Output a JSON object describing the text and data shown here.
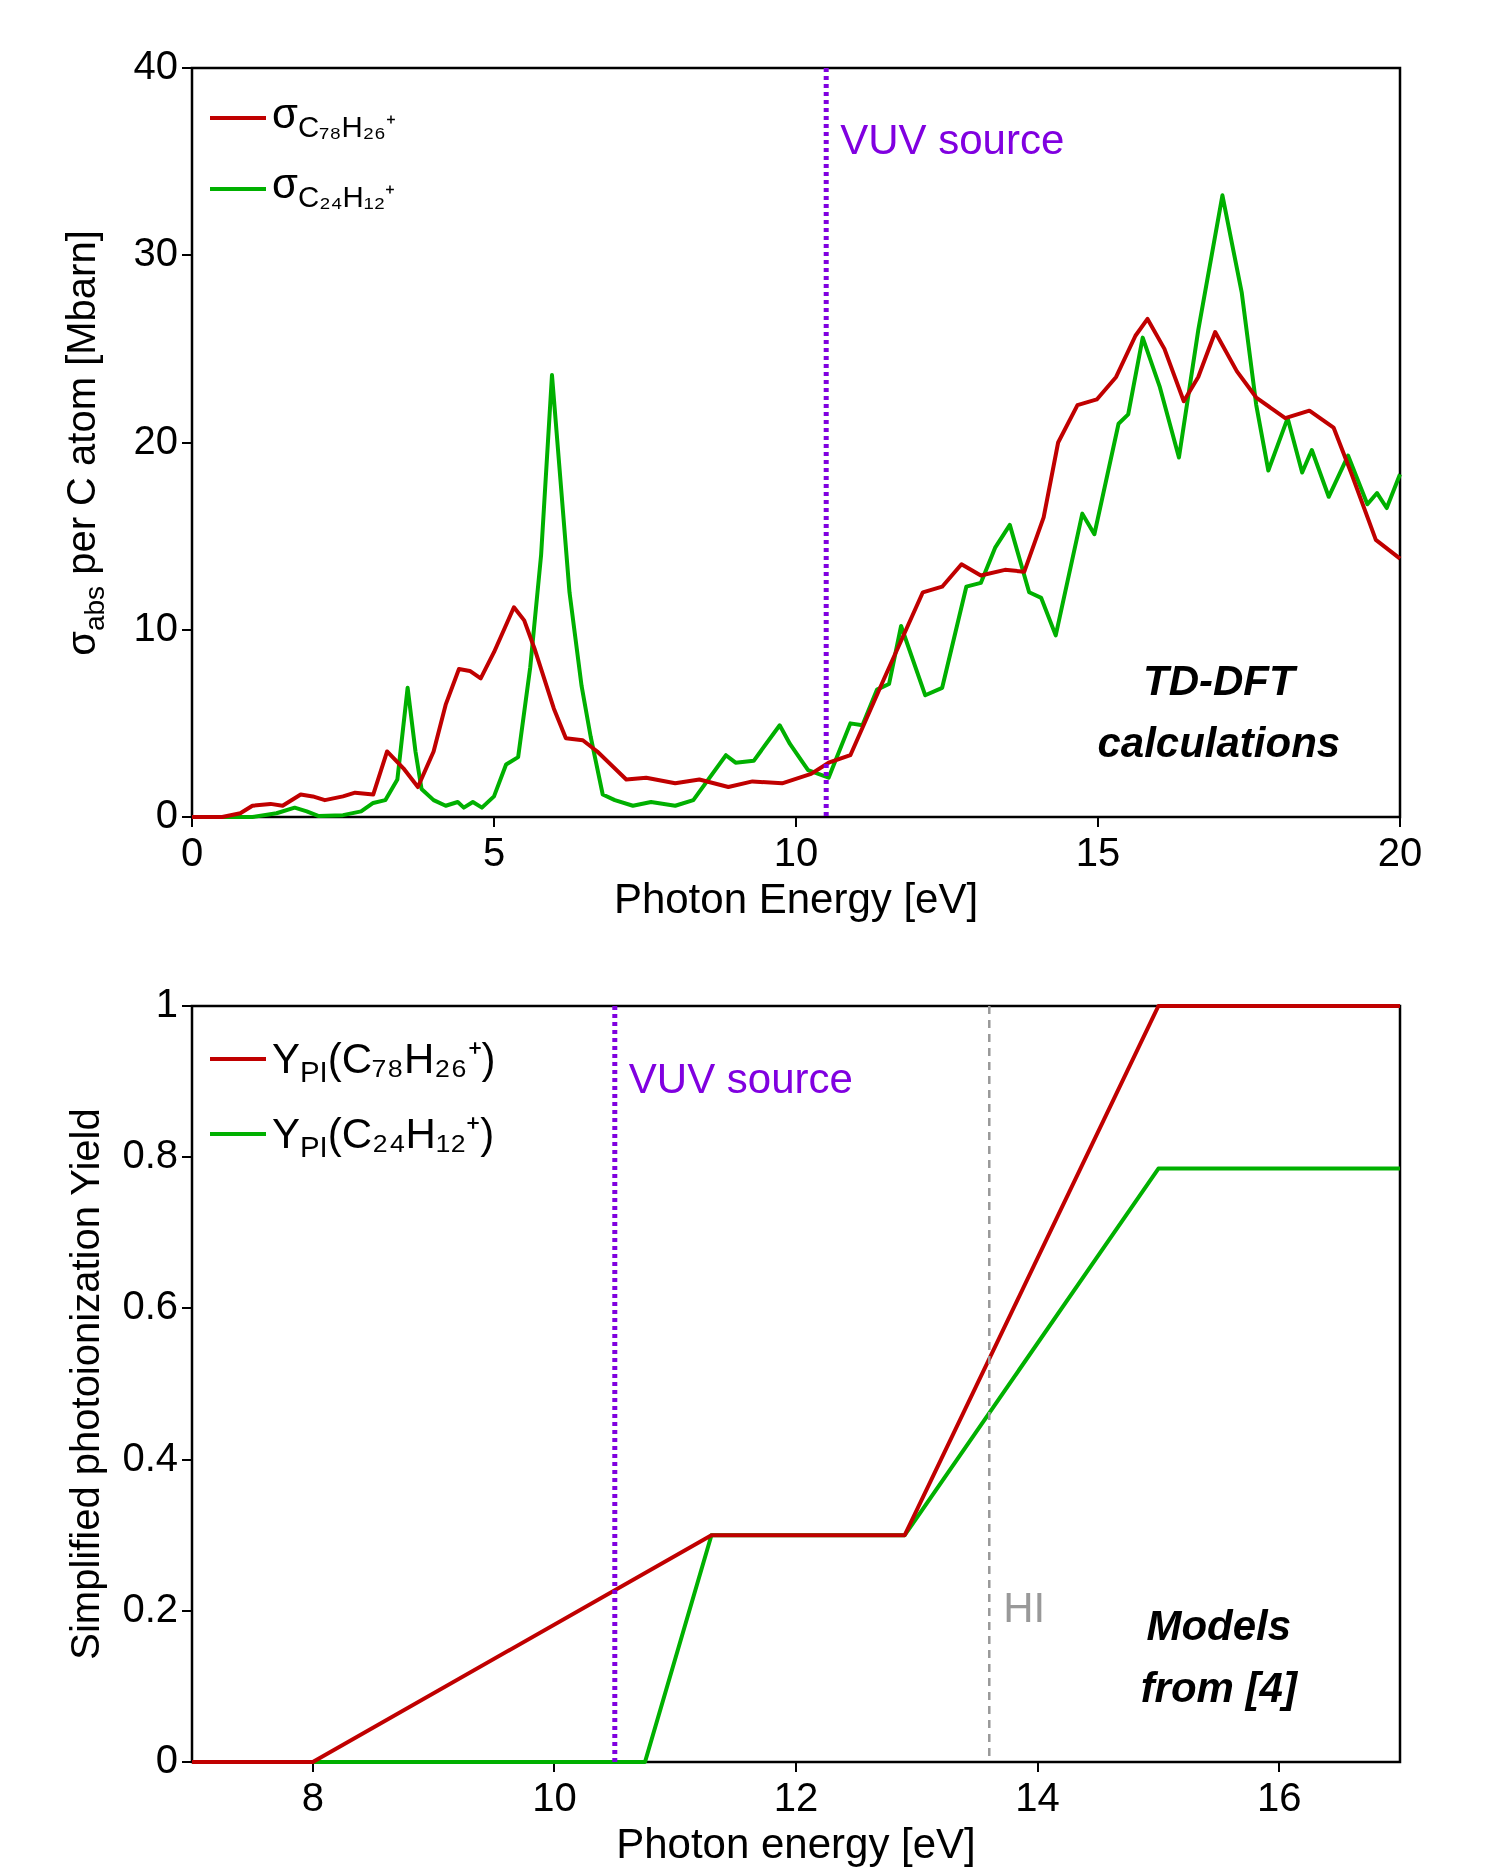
{
  "chart_data": [
    {
      "type": "line",
      "xlabel": "Photon Energy [eV]",
      "ylabel": "σ$_{abs}$ per C atom [Mbarn]",
      "xlim": [
        0,
        20
      ],
      "ylim": [
        0,
        40
      ],
      "xticks": [
        0,
        5,
        10,
        15,
        20
      ],
      "yticks": [
        0,
        10,
        20,
        30,
        40
      ],
      "grid": false,
      "legend": "top left",
      "marker": "none",
      "line_style": "solid",
      "series": [
        {
          "name": "σ$_{C₇₈H₂₆⁺}$",
          "color": "#c00000",
          "x": [
            0,
            0.5,
            0.8,
            1,
            1.3,
            1.5,
            1.7,
            1.8,
            2,
            2.2,
            2.5,
            2.7,
            3,
            3.23,
            3.5,
            3.74,
            4,
            4.2,
            4.42,
            4.6,
            4.78,
            5,
            5.33,
            5.5,
            5.67,
            5.99,
            6.19,
            6.47,
            6.71,
            7.19,
            7.52,
            8,
            8.4,
            8.88,
            9.28,
            9.77,
            10.25,
            10.54,
            10.9,
            11.46,
            12.1,
            12.42,
            12.74,
            13.06,
            13.46,
            13.78,
            14.1,
            14.34,
            14.66,
            14.98,
            15.3,
            15.62,
            15.82,
            16.1,
            16.42,
            16.66,
            16.94,
            17.3,
            17.62,
            18.1,
            18.5,
            18.9,
            19.2,
            19.6,
            20
          ],
          "values": [
            0,
            0,
            0.2,
            0.6,
            0.7,
            0.6,
            1,
            1.2,
            1.1,
            0.9,
            1.1,
            1.3,
            1.2,
            3.5,
            2.6,
            1.6,
            3.5,
            6,
            7.9,
            7.8,
            7.4,
            8.8,
            11.2,
            10.5,
            9,
            5.8,
            4.2,
            4.1,
            3.5,
            2,
            2.1,
            1.8,
            2,
            1.6,
            1.9,
            1.8,
            2.3,
            2.9,
            3.3,
            7.4,
            12,
            12.3,
            13.5,
            12.9,
            13.2,
            13.1,
            16,
            20,
            22,
            22.3,
            23.5,
            25.7,
            26.6,
            25,
            22.2,
            23.5,
            25.9,
            23.8,
            22.4,
            21.3,
            21.7,
            20.8,
            18.3,
            14.8,
            13.8
          ]
        },
        {
          "name": "σ$_{C₂₄H₁₂⁺}$",
          "color": "#00b000",
          "x": [
            0,
            1,
            1.4,
            1.7,
            1.9,
            2.1,
            2.5,
            2.8,
            3,
            3.2,
            3.4,
            3.57,
            3.7,
            3.8,
            4,
            4.2,
            4.4,
            4.5,
            4.65,
            4.8,
            5,
            5.2,
            5.4,
            5.6,
            5.78,
            5.96,
            6.1,
            6.25,
            6.45,
            6.6,
            6.8,
            7,
            7.3,
            7.6,
            8,
            8.3,
            8.84,
            9,
            9.3,
            9.73,
            9.9,
            10.2,
            10.54,
            10.9,
            11.1,
            11.34,
            11.54,
            11.74,
            12.14,
            12.42,
            12.82,
            13.06,
            13.3,
            13.54,
            13.86,
            14.06,
            14.3,
            14.74,
            14.94,
            15.34,
            15.5,
            15.74,
            16.02,
            16.34,
            16.66,
            17.06,
            17.38,
            17.62,
            17.82,
            18.14,
            18.38,
            18.54,
            18.82,
            19.14,
            19.46,
            19.62,
            19.78,
            20
          ],
          "values": [
            0,
            0,
            0.2,
            0.5,
            0.3,
            0.05,
            0.1,
            0.3,
            0.75,
            0.9,
            2,
            6.9,
            3.5,
            1.5,
            0.9,
            0.6,
            0.8,
            0.5,
            0.8,
            0.5,
            1.1,
            2.8,
            3.2,
            8,
            14,
            23.6,
            18,
            12,
            7,
            4.3,
            1.2,
            0.9,
            0.6,
            0.8,
            0.6,
            0.9,
            3.3,
            2.9,
            3,
            4.9,
            3.9,
            2.5,
            2.1,
            5,
            4.9,
            6.8,
            7.1,
            10.2,
            6.5,
            6.9,
            12.3,
            12.5,
            14.4,
            15.6,
            12,
            11.7,
            9.7,
            16.2,
            15.1,
            21,
            21.5,
            25.6,
            23,
            19.2,
            26,
            33.2,
            28,
            22,
            18.5,
            21.3,
            18.4,
            19.6,
            17.1,
            19.3,
            16.7,
            17.3,
            16.5,
            18.3
          ]
        }
      ],
      "ref_lines": [
        {
          "axis": "x",
          "value": 10.5,
          "label": "VUV source",
          "color": "#8000e0",
          "line_style": "dotted"
        }
      ],
      "annotations": [
        "TD-DFT calculations"
      ]
    },
    {
      "type": "line",
      "xlabel": "Photon energy [eV]",
      "ylabel": "Simplified photoionization Yield",
      "xlim": [
        7,
        17
      ],
      "ylim": [
        0,
        1
      ],
      "xticks": [
        8,
        10,
        12,
        14,
        16
      ],
      "yticks": [
        0,
        0.2,
        0.4,
        0.6,
        0.8,
        1
      ],
      "grid": false,
      "legend": "top left",
      "marker": "none",
      "line_style": "solid",
      "series": [
        {
          "name": "Y$_{PI}$(C₇₈H₂₆⁺)",
          "color": "#c00000",
          "x": [
            7,
            8,
            11.3,
            12.9,
            15,
            17
          ],
          "values": [
            0,
            0,
            0.3,
            0.3,
            1,
            1
          ]
        },
        {
          "name": "Y$_{PI}$(C₂₄H₁₂⁺)",
          "color": "#00b000",
          "x": [
            7,
            10.75,
            11.3,
            12.9,
            15,
            17
          ],
          "values": [
            0,
            0,
            0.3,
            0.3,
            0.785,
            0.785
          ]
        }
      ],
      "ref_lines": [
        {
          "axis": "x",
          "value": 10.5,
          "label": "VUV source",
          "color": "#8000e0",
          "line_style": "dotted"
        },
        {
          "axis": "x",
          "value": 13.6,
          "label": "HI",
          "color": "#999999",
          "line_style": "dashed"
        }
      ],
      "annotations": [
        "Models from [4]"
      ]
    }
  ]
}
